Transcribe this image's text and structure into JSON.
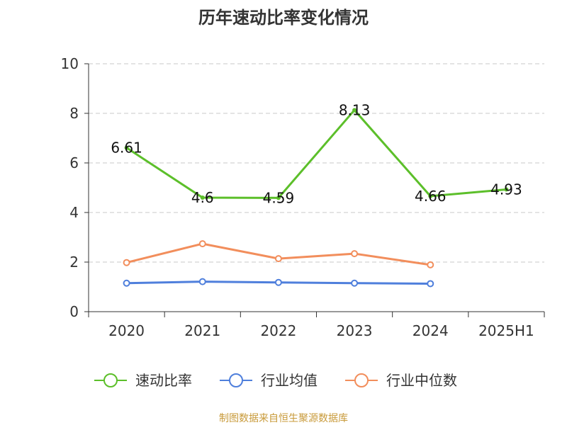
{
  "chart_data": {
    "type": "line",
    "title": "历年速动比率变化情况",
    "categories": [
      "2020",
      "2021",
      "2022",
      "2023",
      "2024",
      "2025H1"
    ],
    "ylim": [
      0,
      10
    ],
    "yticks": [
      0,
      2,
      4,
      6,
      8,
      10
    ],
    "grid": true,
    "legend_position": "bottom",
    "series": [
      {
        "name": "速动比率",
        "color": "#5cbf2a",
        "values": [
          6.61,
          4.6,
          4.59,
          8.13,
          4.66,
          4.93
        ],
        "labels": [
          "6.61",
          "4.6",
          "4.59",
          "8.13",
          "4.66",
          "4.93"
        ]
      },
      {
        "name": "行业均值",
        "color": "#4f7fdc",
        "values": [
          1.15,
          1.21,
          1.18,
          1.15,
          1.13,
          null
        ]
      },
      {
        "name": "行业中位数",
        "color": "#f28e5c",
        "values": [
          1.98,
          2.74,
          2.14,
          2.34,
          1.89,
          null
        ]
      }
    ],
    "source": "制图数据来自恒生聚源数据库"
  }
}
